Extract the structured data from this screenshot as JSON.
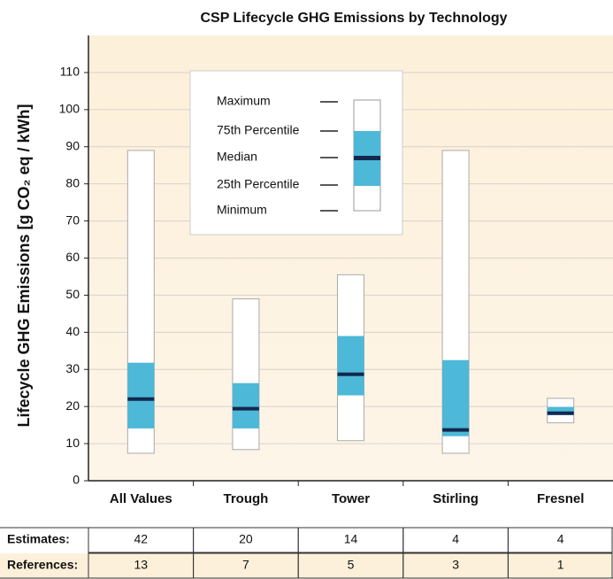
{
  "chart_data": {
    "type": "box",
    "title": "CSP Lifecycle GHG Emissions by Technology",
    "y_label": "Lifecycle GHG Emissions [g CO₂ eq / kWh]",
    "categories": [
      "All Values",
      "Trough",
      "Tower",
      "Stirling",
      "Fresnel"
    ],
    "min": [
      7.4,
      8.4,
      10.8,
      7.4,
      15.6
    ],
    "q1": [
      14.1,
      14.1,
      23,
      12,
      17.7
    ],
    "median": [
      22,
      19.4,
      28.7,
      13.7,
      18.2
    ],
    "q3": [
      31.8,
      26.3,
      39,
      32.5,
      19.9
    ],
    "max": [
      89,
      49,
      55.5,
      89,
      22.2
    ],
    "box_color": "#4db8d8",
    "range_color": "#ffffff",
    "median_color": "#13284e",
    "ylim": [
      0,
      120
    ],
    "yticks": [
      0,
      10,
      20,
      30,
      40,
      50,
      60,
      70,
      80,
      90,
      100,
      110
    ],
    "grid": true,
    "legend": [
      "Maximum",
      "75th Percentile",
      "Median",
      "25th Percentile",
      "Minimum"
    ],
    "table": [
      {
        "label": "Estimates:",
        "values": [
          42,
          20,
          14,
          4,
          4
        ]
      },
      {
        "label": "References:",
        "values": [
          13,
          7,
          5,
          3,
          1
        ]
      }
    ]
  }
}
